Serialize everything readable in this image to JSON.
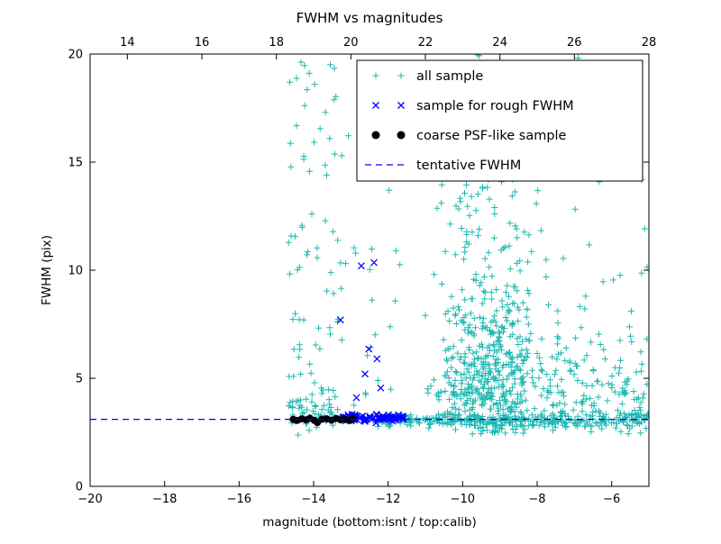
{
  "figure": {
    "background": "#ffffff"
  },
  "chart_data": {
    "type": "scatter",
    "title": "FWHM vs magnitudes",
    "xlabel": "magnitude (bottom:isnt / top:calib)",
    "ylabel": "FWHM (pix)",
    "xlim": [
      -20,
      -5
    ],
    "ylim": [
      0,
      20
    ],
    "top_xlim": [
      13,
      28
    ],
    "xticks": [
      -20,
      -18,
      -16,
      -14,
      -12,
      -10,
      -8,
      -6
    ],
    "xtick_labels": [
      "−20",
      "−18",
      "−16",
      "−14",
      "−12",
      "−10",
      "−8",
      "−6"
    ],
    "top_xticks": [
      14,
      16,
      18,
      20,
      22,
      24,
      26,
      28
    ],
    "top_xtick_labels": [
      "14",
      "16",
      "18",
      "20",
      "22",
      "24",
      "26",
      "28"
    ],
    "yticks": [
      0,
      5,
      10,
      15,
      20
    ],
    "ytick_labels": [
      "0",
      "5",
      "10",
      "15",
      "20"
    ],
    "grid": false,
    "legend": {
      "position": "upper right",
      "entries": [
        "all sample",
        "sample for rough FWHM",
        "coarse PSF-like sample",
        "tentative FWHM"
      ]
    },
    "tentative_fwhm_y": 3.1,
    "seed": 20,
    "series": [
      {
        "id": "all-sample",
        "name": "all sample",
        "marker": "plus",
        "color": "#1cb8b0",
        "clusters": [
          {
            "n": 70,
            "x": {
              "dist": "uniform",
              "a": -14.7,
              "b": -13.3
            },
            "y": {
              "dist": "uniform",
              "a": 2.3,
              "b": 19.8
            }
          },
          {
            "n": 55,
            "x": {
              "dist": "uniform",
              "a": -14.7,
              "b": -13.3
            },
            "y": {
              "dist": "normal",
              "mean": 3.4,
              "sd": 0.6,
              "min": 2.4,
              "max": 6.5
            }
          },
          {
            "n": 35,
            "x": {
              "dist": "uniform",
              "a": -13.3,
              "b": -11.6
            },
            "y": {
              "dist": "uniform",
              "a": 2.5,
              "b": 19.5
            }
          },
          {
            "n": 520,
            "x": {
              "dist": "normal",
              "mean": -9.2,
              "sd": 0.75,
              "min": -11.0,
              "max": -6.6
            },
            "y": {
              "dist": "lognormal",
              "mu": 1.55,
              "sigma": 0.42,
              "min": 2.4,
              "max": 16.0
            }
          },
          {
            "n": 130,
            "x": {
              "dist": "normal",
              "mean": -9.3,
              "sd": 0.9,
              "min": -11.2,
              "max": -6.4
            },
            "y": {
              "dist": "uniform",
              "a": 7.0,
              "b": 20.0
            }
          },
          {
            "n": 150,
            "x": {
              "dist": "uniform",
              "a": -7.6,
              "b": -5.02
            },
            "y": {
              "dist": "lognormal",
              "mu": 1.35,
              "sigma": 0.45,
              "min": 2.4,
              "max": 15.0
            }
          },
          {
            "n": 260,
            "x": {
              "dist": "uniform",
              "a": -12.3,
              "b": -5.02
            },
            "y": {
              "dist": "normal",
              "mean": 3.05,
              "sd": 0.15,
              "min": 2.55,
              "max": 3.6
            }
          },
          {
            "n": 45,
            "x": {
              "dist": "uniform",
              "a": -11.5,
              "b": -5.1
            },
            "y": {
              "dist": "uniform",
              "a": 14.0,
              "b": 20.0
            }
          }
        ]
      },
      {
        "id": "rough-fwhm-sample",
        "name": "sample for rough FWHM",
        "marker": "x",
        "color": "#0000ff",
        "clusters": [
          {
            "n": 80,
            "x": {
              "dist": "uniform",
              "a": -13.25,
              "b": -11.55
            },
            "y": {
              "dist": "normal",
              "mean": 3.15,
              "sd": 0.09,
              "min": 2.9,
              "max": 3.5
            }
          }
        ],
        "points": [
          [
            -12.72,
            10.2
          ],
          [
            -12.38,
            10.35
          ],
          [
            -13.28,
            7.7
          ],
          [
            -12.52,
            6.35
          ],
          [
            -12.3,
            5.9
          ],
          [
            -12.62,
            5.2
          ],
          [
            -12.2,
            4.55
          ],
          [
            -12.85,
            4.1
          ]
        ]
      },
      {
        "id": "coarse-psf-like-sample",
        "name": "coarse PSF-like sample",
        "marker": "dot",
        "color": "#000000",
        "points": [
          [
            -14.55,
            3.1
          ],
          [
            -14.45,
            3.05
          ],
          [
            -14.32,
            3.12
          ],
          [
            -14.2,
            3.08
          ],
          [
            -14.1,
            3.15
          ],
          [
            -13.98,
            3.05
          ],
          [
            -13.9,
            2.95
          ],
          [
            -13.78,
            3.1
          ],
          [
            -13.65,
            3.12
          ],
          [
            -13.52,
            3.06
          ],
          [
            -13.4,
            3.14
          ],
          [
            -13.28,
            3.08
          ],
          [
            -13.15,
            3.1
          ],
          [
            -13.02,
            3.05
          ],
          [
            -12.95,
            3.12
          ]
        ]
      },
      {
        "id": "tentative-fwhm",
        "name": "tentative FWHM",
        "type": "hline",
        "y": 3.1,
        "color": "#0000ff",
        "dash": [
          7,
          5
        ]
      }
    ]
  }
}
